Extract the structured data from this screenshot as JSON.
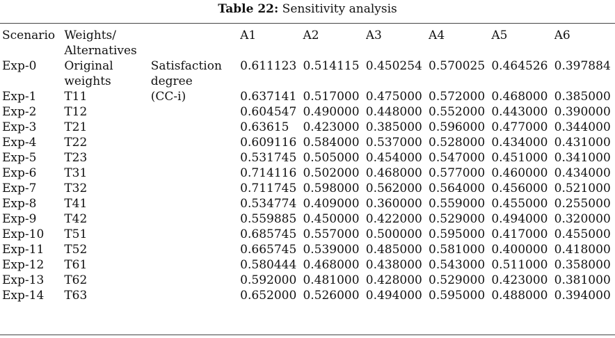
{
  "caption": {
    "label": "Table 22:",
    "title": "Sensitivity analysis"
  },
  "columns": {
    "scenario": "Scenario",
    "weights_line1": "Weights/",
    "weights_line2": "Alternatives",
    "alternatives": [
      "A1",
      "A2",
      "A3",
      "A4",
      "A5",
      "A6"
    ]
  },
  "measure": {
    "line1": "Satisfaction",
    "line2": "degree",
    "line3": "(CC-i)"
  },
  "rows": [
    {
      "scenario": "Exp-0",
      "weight": "Original weights",
      "values": [
        "0.611123",
        "0.514115",
        "0.450254",
        "0.570025",
        "0.464526",
        "0.397884"
      ]
    },
    {
      "scenario": "Exp-1",
      "weight": "T11",
      "values": [
        "0.637141",
        "0.517000",
        "0.475000",
        "0.572000",
        "0.468000",
        "0.385000"
      ]
    },
    {
      "scenario": "Exp-2",
      "weight": "T12",
      "values": [
        "0.604547",
        "0.490000",
        "0.448000",
        "0.552000",
        "0.443000",
        "0.390000"
      ]
    },
    {
      "scenario": "Exp-3",
      "weight": "T21",
      "values": [
        "0.63615",
        "0.423000",
        "0.385000",
        "0.596000",
        "0.477000",
        "0.344000"
      ]
    },
    {
      "scenario": "Exp-4",
      "weight": "T22",
      "values": [
        "0.609116",
        "0.584000",
        "0.537000",
        "0.528000",
        "0.434000",
        "0.431000"
      ]
    },
    {
      "scenario": "Exp-5",
      "weight": "T23",
      "values": [
        "0.531745",
        "0.505000",
        "0.454000",
        "0.547000",
        "0.451000",
        "0.341000"
      ]
    },
    {
      "scenario": "Exp-6",
      "weight": "T31",
      "values": [
        "0.714116",
        "0.502000",
        "0.468000",
        "0.577000",
        "0.460000",
        "0.434000"
      ]
    },
    {
      "scenario": "Exp-7",
      "weight": "T32",
      "values": [
        "0.711745",
        "0.598000",
        "0.562000",
        "0.564000",
        "0.456000",
        "0.521000"
      ]
    },
    {
      "scenario": "Exp-8",
      "weight": "T41",
      "values": [
        "0.534774",
        "0.409000",
        "0.360000",
        "0.559000",
        "0.455000",
        "0.255000"
      ]
    },
    {
      "scenario": "Exp-9",
      "weight": "T42",
      "values": [
        "0.559885",
        "0.450000",
        "0.422000",
        "0.529000",
        "0.494000",
        "0.320000"
      ]
    },
    {
      "scenario": "Exp-10",
      "weight": "T51",
      "values": [
        "0.685745",
        "0.557000",
        "0.500000",
        "0.595000",
        "0.417000",
        "0.455000"
      ]
    },
    {
      "scenario": "Exp-11",
      "weight": "T52",
      "values": [
        "0.665745",
        "0.539000",
        "0.485000",
        "0.581000",
        "0.400000",
        "0.418000"
      ]
    },
    {
      "scenario": "Exp-12",
      "weight": "T61",
      "values": [
        "0.580444",
        "0.468000",
        "0.438000",
        "0.543000",
        "0.511000",
        "0.358000"
      ]
    },
    {
      "scenario": "Exp-13",
      "weight": "T62",
      "values": [
        "0.592000",
        "0.481000",
        "0.428000",
        "0.529000",
        "0.423000",
        "0.381000"
      ]
    },
    {
      "scenario": "Exp-14",
      "weight": "T63",
      "values": [
        "0.652000",
        "0.526000",
        "0.494000",
        "0.595000",
        "0.488000",
        "0.394000"
      ]
    }
  ]
}
